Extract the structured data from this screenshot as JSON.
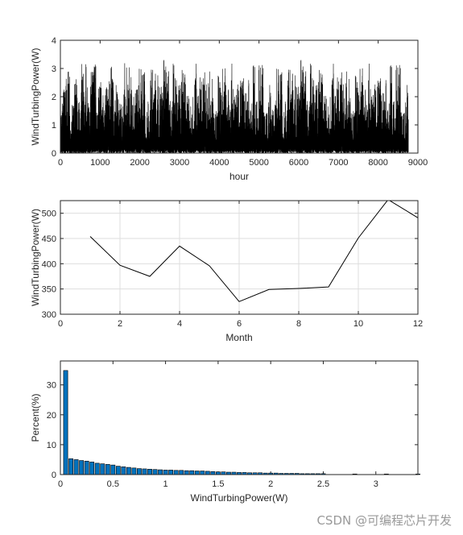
{
  "chart_data": [
    {
      "type": "line",
      "xlabel": "hour",
      "ylabel": "WindTurbingPower(W)",
      "xlim": [
        0,
        9000
      ],
      "ylim": [
        0,
        4
      ],
      "xticks": [
        "0",
        "1000",
        "2000",
        "3000",
        "4000",
        "5000",
        "6000",
        "7000",
        "8000",
        "9000"
      ],
      "yticks": [
        "0",
        "1",
        "2",
        "3",
        "4"
      ],
      "grid": false,
      "n_points": 8760,
      "peak_value": 3.4,
      "line_color": "#000000",
      "note": "dense hourly series, values between 0 and about 3.4"
    },
    {
      "type": "line",
      "xlabel": "Month",
      "ylabel": "WindTurbingPower(W)",
      "xlim": [
        0,
        12
      ],
      "ylim": [
        300,
        525
      ],
      "xticks": [
        "0",
        "2",
        "4",
        "6",
        "8",
        "10",
        "12"
      ],
      "yticks": [
        "300",
        "350",
        "400",
        "450",
        "500"
      ],
      "grid": true,
      "line_color": "#000000",
      "x": [
        1,
        2,
        3,
        4,
        5,
        6,
        7,
        8,
        9,
        10,
        11,
        12
      ],
      "y": [
        454,
        397,
        375,
        435,
        396,
        325,
        349,
        351,
        354,
        451,
        527,
        491
      ]
    },
    {
      "type": "bar",
      "xlabel": "WindTurbingPower(W)",
      "ylabel": "Percent(%)",
      "xlim": [
        0,
        3.4
      ],
      "ylim": [
        0,
        38
      ],
      "xticks": [
        "0",
        "0.5",
        "1",
        "1.5",
        "2",
        "2.5",
        "3"
      ],
      "yticks": [
        "0",
        "10",
        "20",
        "30"
      ],
      "grid": false,
      "bar_color": "#0072BD",
      "x": [
        0.05,
        0.1,
        0.15,
        0.2,
        0.25,
        0.3,
        0.35,
        0.4,
        0.45,
        0.5,
        0.55,
        0.6,
        0.65,
        0.7,
        0.75,
        0.8,
        0.85,
        0.9,
        0.95,
        1.0,
        1.05,
        1.1,
        1.15,
        1.2,
        1.25,
        1.3,
        1.35,
        1.4,
        1.45,
        1.5,
        1.55,
        1.6,
        1.65,
        1.7,
        1.75,
        1.8,
        1.85,
        1.9,
        1.95,
        2.0,
        2.05,
        2.1,
        2.15,
        2.2,
        2.25,
        2.3,
        2.35,
        2.4,
        2.45,
        2.5,
        2.8,
        3.1,
        3.4
      ],
      "values": [
        34.8,
        5.3,
        5.0,
        4.7,
        4.5,
        4.2,
        3.8,
        3.6,
        3.4,
        3.2,
        2.8,
        2.6,
        2.4,
        2.2,
        2.0,
        1.9,
        1.8,
        1.7,
        1.6,
        1.5,
        1.5,
        1.4,
        1.4,
        1.3,
        1.3,
        1.2,
        1.2,
        1.1,
        1.0,
        0.9,
        0.9,
        0.8,
        0.8,
        0.7,
        0.7,
        0.6,
        0.6,
        0.6,
        0.5,
        0.5,
        0.5,
        0.4,
        0.4,
        0.4,
        0.4,
        0.3,
        0.3,
        0.3,
        0.3,
        0.3,
        0.2,
        0.2,
        0.2
      ]
    }
  ],
  "watermark": "CSDN @可编程芯片开发"
}
